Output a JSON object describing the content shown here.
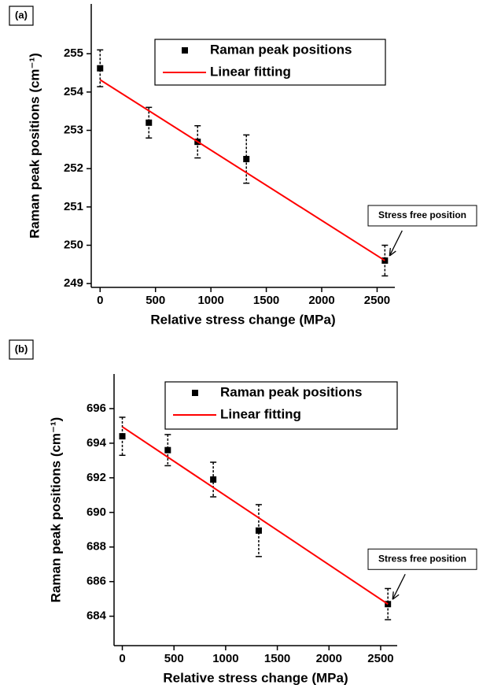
{
  "chart_data": [
    {
      "type": "scatter",
      "panel_label": "(a)",
      "xlabel": "Relative stress change (MPa)",
      "ylabel": "Raman peak positions (cm⁻¹)",
      "xlim": [
        -80,
        2660
      ],
      "ylim": [
        248.9,
        256.3
      ],
      "xticks": [
        0,
        500,
        1000,
        1500,
        2000,
        2500
      ],
      "yticks": [
        249,
        250,
        251,
        252,
        253,
        254,
        255
      ],
      "legend": "upper right",
      "series": [
        {
          "name": "Raman peak positions",
          "color": "#000000",
          "style": "markers",
          "x": [
            0,
            440,
            880,
            1320,
            2570
          ],
          "values": [
            254.62,
            253.2,
            252.7,
            252.25,
            249.6
          ],
          "errors": [
            0.48,
            0.4,
            0.42,
            0.63,
            0.4
          ]
        },
        {
          "name": "Linear fitting",
          "color": "#ff0000",
          "style": "line",
          "x": [
            0,
            2570
          ],
          "values": [
            254.32,
            249.6
          ]
        }
      ],
      "annotations": [
        {
          "text": "Stress free position",
          "x": 2570,
          "y": 249.6
        }
      ]
    },
    {
      "type": "scatter",
      "panel_label": "(b)",
      "xlabel": "Relative stress change (MPa)",
      "ylabel": "Raman peak positions (cm⁻¹)",
      "xlim": [
        -80,
        2660
      ],
      "ylim": [
        682.3,
        698
      ],
      "xticks": [
        0,
        500,
        1000,
        1500,
        2000,
        2500
      ],
      "yticks": [
        684,
        686,
        688,
        690,
        692,
        694,
        696
      ],
      "legend": "upper right",
      "series": [
        {
          "name": "Raman peak positions",
          "color": "#000000",
          "style": "markers",
          "x": [
            0,
            440,
            880,
            1320,
            2570
          ],
          "values": [
            694.4,
            693.6,
            691.9,
            688.95,
            684.7
          ],
          "errors": [
            1.1,
            0.9,
            1.0,
            1.5,
            0.9
          ]
        },
        {
          "name": "Linear fitting",
          "color": "#ff0000",
          "style": "line",
          "x": [
            0,
            2570
          ],
          "values": [
            694.95,
            684.7
          ]
        }
      ],
      "annotations": [
        {
          "text": "Stress free position",
          "x": 2570,
          "y": 684.7
        }
      ]
    }
  ]
}
